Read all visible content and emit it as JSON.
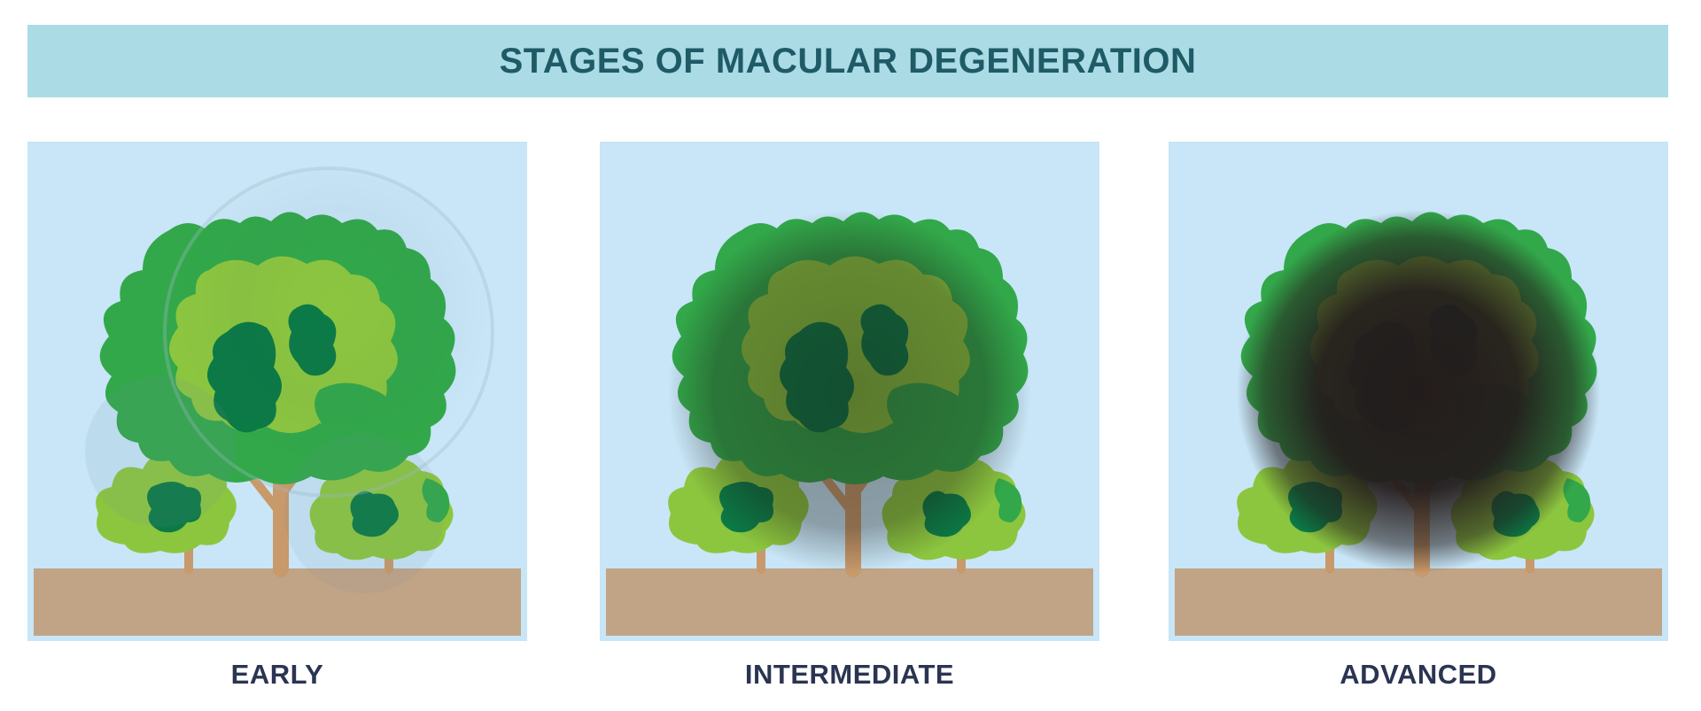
{
  "title": "STAGES OF MACULAR DEGENERATION",
  "colors": {
    "banner": "#abdce6",
    "title": "#1f5b66",
    "sky": "#c8e6f7",
    "ground": "#c1a486",
    "trunk": "#c8996a",
    "leaf_dark": "#0b7a45",
    "leaf_mid": "#32a84a",
    "leaf_light": "#8cc63f",
    "caption": "#2a3552"
  },
  "stages": [
    {
      "label": "EARLY",
      "blur_level": "light"
    },
    {
      "label": "INTERMEDIATE",
      "blur_level": "medium"
    },
    {
      "label": "ADVANCED",
      "blur_level": "heavy"
    }
  ]
}
